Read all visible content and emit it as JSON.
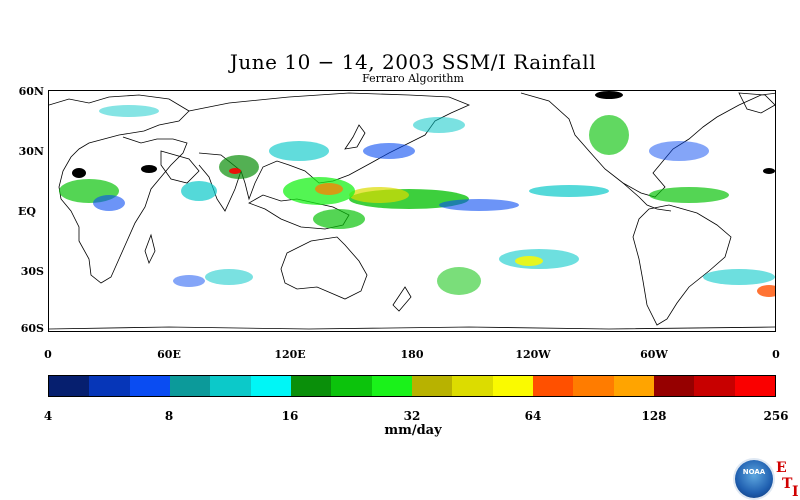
{
  "title": "June 10 − 14, 2003 SSM/I Rainfall",
  "subtitle": "Ferraro Algorithm",
  "lat_labels": [
    "60N",
    "30N",
    "EQ",
    "30S",
    "60S"
  ],
  "lon_labels": [
    "0",
    "60E",
    "120E",
    "180",
    "120W",
    "60W",
    "0"
  ],
  "colorbar": {
    "colors": [
      "#061f6f",
      "#0636b8",
      "#0a4cf2",
      "#0c9a9a",
      "#0cc9c9",
      "#00f6f6",
      "#0a8f0a",
      "#0cc30c",
      "#1af21a",
      "#b8b200",
      "#dcdc00",
      "#fafa00",
      "#ff5000",
      "#ff7c00",
      "#ffa400",
      "#960000",
      "#c80000",
      "#fa0000"
    ],
    "ticks": [
      "4",
      "8",
      "16",
      "32",
      "64",
      "128",
      "256"
    ]
  },
  "units": "mm/day",
  "logo": {
    "name": "NOAA",
    "text": "NOAA"
  },
  "corner_letters": [
    "E",
    "T",
    "I"
  ]
}
